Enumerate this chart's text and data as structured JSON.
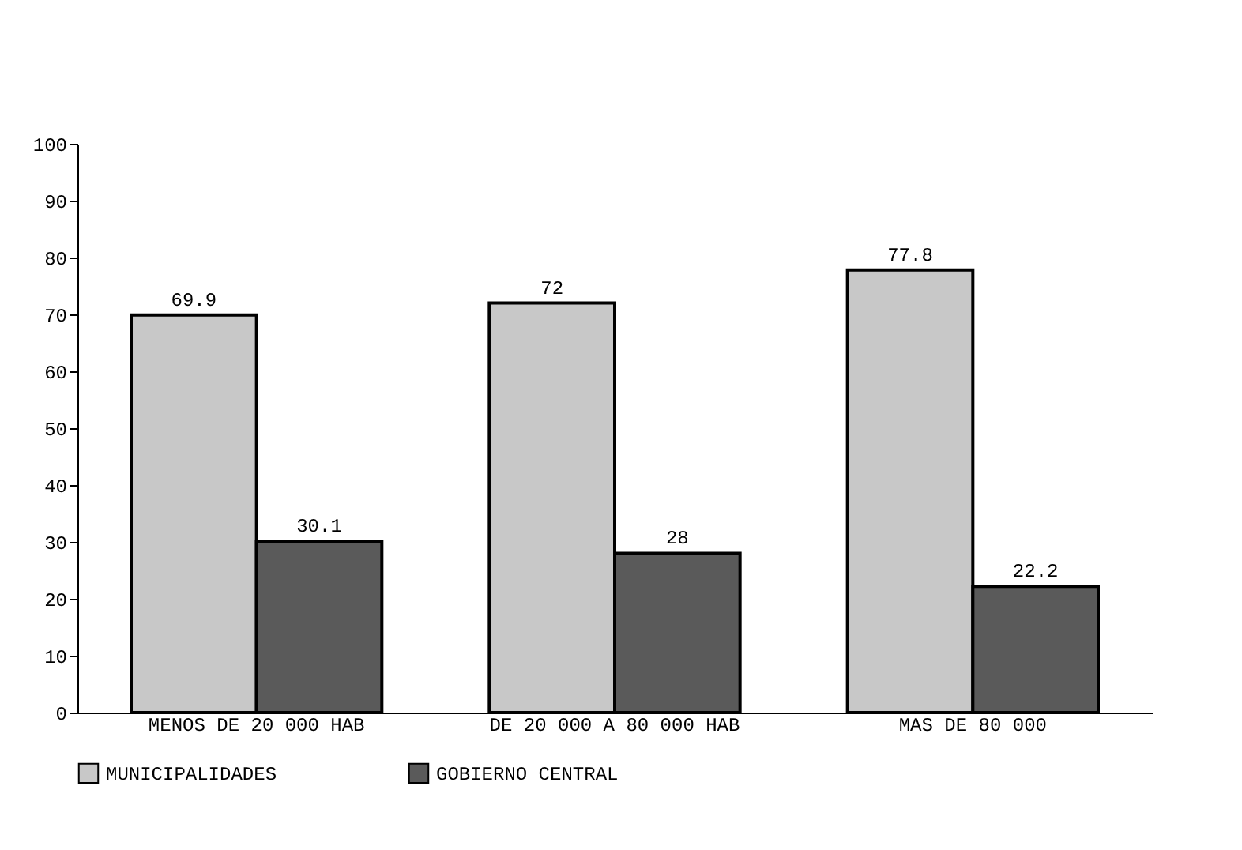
{
  "chart_data": {
    "type": "bar",
    "categories": [
      "MENOS DE 20 000 HAB",
      "DE 20 000 A 80 000 HAB",
      "MAS DE 80 000"
    ],
    "series": [
      {
        "name": "MUNICIPALIDADES",
        "color": "#c8c8c8",
        "values": [
          69.9,
          72,
          77.8
        ]
      },
      {
        "name": "GOBIERNO CENTRAL",
        "color": "#5a5a5a",
        "values": [
          30.1,
          28,
          22.2
        ]
      }
    ],
    "ylim": [
      0,
      100
    ],
    "yticks": [
      0,
      10,
      20,
      30,
      40,
      50,
      60,
      70,
      80,
      90,
      100
    ],
    "grid": false,
    "legend": "bottom",
    "data_labels": true
  }
}
